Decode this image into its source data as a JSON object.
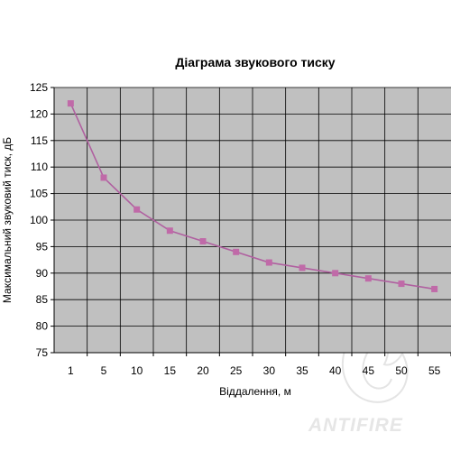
{
  "chart_data": {
    "type": "line",
    "title": "Діаграма звукового тиску",
    "xlabel": "Віддалення, м",
    "ylabel": "Максимальний звуковий тиск, дБ",
    "categories": [
      "1",
      "5",
      "10",
      "15",
      "20",
      "25",
      "30",
      "35",
      "40",
      "45",
      "50",
      "55"
    ],
    "series": [
      {
        "values": [
          122,
          108,
          102,
          98,
          96,
          94,
          92,
          91,
          90,
          89,
          88,
          87
        ]
      }
    ],
    "ylim": [
      75,
      125
    ],
    "yticks": [
      75,
      80,
      85,
      90,
      95,
      100,
      105,
      110,
      115,
      120,
      125
    ],
    "grid": true,
    "legend": "none",
    "colors": {
      "plot_background": "#c0c0c0",
      "gridline": "#000000",
      "series_line": "#b060a0",
      "series_marker": "#c06aa8"
    }
  },
  "watermark": {
    "text": "ANTIFIRE",
    "icon": "flame-icon"
  }
}
